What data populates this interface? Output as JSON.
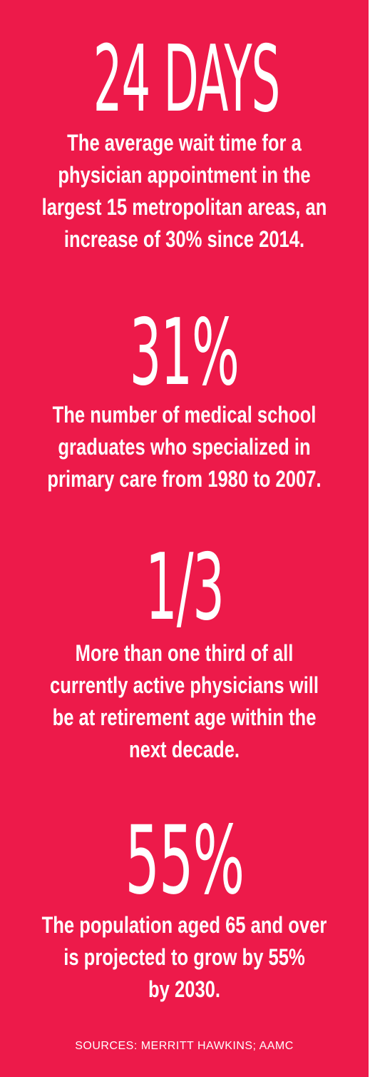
{
  "colors": {
    "background": "#ed1a4a",
    "text": "#ffffff"
  },
  "stats": [
    {
      "figure": "24 DAYS",
      "description_lines": [
        "The average wait time for a",
        "physician appointment in the",
        "largest 15 metropolitan areas, an",
        "increase of 30% since 2014."
      ]
    },
    {
      "figure": "31%",
      "description_lines": [
        "The number of medical school",
        "graduates who specialized in",
        "primary care from 1980 to 2007."
      ]
    },
    {
      "figure": "1/3",
      "description_lines": [
        "More than one third of all",
        "currently active physicians will",
        "be at retirement age within the",
        "next decade."
      ]
    },
    {
      "figure": "55%",
      "description_lines": [
        "The population aged 65 and over",
        "is projected to grow by 55%",
        "by 2030."
      ]
    }
  ],
  "sources": "SOURCES: MERRITT HAWKINS; AAMC"
}
